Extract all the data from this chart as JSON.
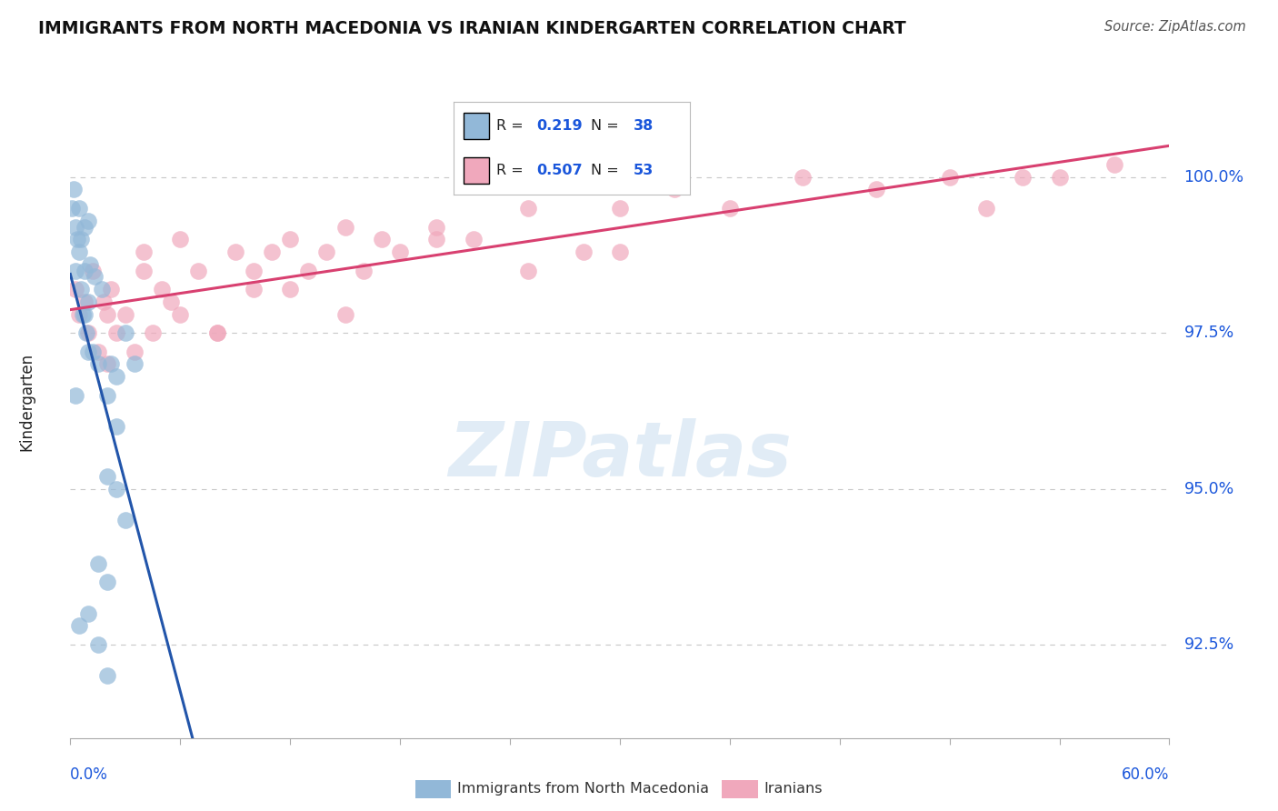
{
  "title": "IMMIGRANTS FROM NORTH MACEDONIA VS IRANIAN KINDERGARTEN CORRELATION CHART",
  "source": "Source: ZipAtlas.com",
  "ylabel": "Kindergarten",
  "xlim": [
    0.0,
    60.0
  ],
  "ylim": [
    91.0,
    101.8
  ],
  "yticks": [
    92.5,
    95.0,
    97.5,
    100.0
  ],
  "ytick_labels": [
    "92.5%",
    "95.0%",
    "97.5%",
    "100.0%"
  ],
  "blue_R": 0.219,
  "blue_N": 38,
  "pink_R": 0.507,
  "pink_N": 53,
  "blue_color": "#92b8d8",
  "pink_color": "#f0a8bc",
  "blue_line_color": "#2255aa",
  "pink_line_color": "#d84070",
  "legend_label_blue": "Immigrants from North Macedonia",
  "legend_label_pink": "Iranians",
  "blue_label_color": "#1a56db",
  "watermark_color": "#cde0f0",
  "grid_color": "#c8c8c8",
  "background_color": "#ffffff",
  "title_color": "#111111",
  "source_color": "#555555",
  "blue_scatter_x": [
    0.1,
    0.2,
    0.3,
    0.3,
    0.4,
    0.5,
    0.5,
    0.6,
    0.6,
    0.7,
    0.8,
    0.8,
    0.9,
    1.0,
    1.0,
    1.1,
    1.2,
    1.3,
    1.5,
    1.7,
    2.0,
    2.2,
    2.5,
    3.0,
    3.5,
    2.0,
    2.5,
    3.0,
    1.5,
    2.0,
    1.0,
    0.5,
    1.5,
    2.0,
    2.5,
    1.0,
    0.8,
    0.3
  ],
  "blue_scatter_y": [
    99.5,
    99.8,
    99.2,
    98.5,
    99.0,
    98.8,
    99.5,
    98.2,
    99.0,
    97.8,
    98.5,
    99.2,
    97.5,
    98.0,
    99.3,
    98.6,
    97.2,
    98.4,
    97.0,
    98.2,
    96.5,
    97.0,
    96.0,
    97.5,
    97.0,
    95.2,
    95.0,
    94.5,
    93.8,
    93.5,
    93.0,
    92.8,
    92.5,
    92.0,
    96.8,
    97.2,
    97.8,
    96.5
  ],
  "pink_scatter_x": [
    0.3,
    0.5,
    0.8,
    1.0,
    1.2,
    1.5,
    1.8,
    2.0,
    2.2,
    2.5,
    3.0,
    3.5,
    4.0,
    4.5,
    5.0,
    5.5,
    6.0,
    7.0,
    8.0,
    9.0,
    10.0,
    11.0,
    12.0,
    13.0,
    14.0,
    15.0,
    16.0,
    17.0,
    18.0,
    20.0,
    22.0,
    25.0,
    28.0,
    30.0,
    33.0,
    36.0,
    40.0,
    44.0,
    48.0,
    50.0,
    52.0,
    54.0,
    57.0,
    2.0,
    4.0,
    6.0,
    8.0,
    10.0,
    12.0,
    15.0,
    20.0,
    25.0,
    30.0
  ],
  "pink_scatter_y": [
    98.2,
    97.8,
    98.0,
    97.5,
    98.5,
    97.2,
    98.0,
    97.8,
    98.2,
    97.5,
    97.8,
    97.2,
    98.5,
    97.5,
    98.2,
    98.0,
    97.8,
    98.5,
    97.5,
    98.8,
    98.2,
    98.8,
    99.0,
    98.5,
    98.8,
    99.2,
    98.5,
    99.0,
    98.8,
    99.2,
    99.0,
    99.5,
    98.8,
    99.5,
    99.8,
    99.5,
    100.0,
    99.8,
    100.0,
    99.5,
    100.0,
    100.0,
    100.2,
    97.0,
    98.8,
    99.0,
    97.5,
    98.5,
    98.2,
    97.8,
    99.0,
    98.5,
    98.8
  ],
  "blue_trend_start_x": 0.0,
  "blue_trend_end_x": 25.0,
  "pink_trend_start_x": 0.0,
  "pink_trend_end_x": 60.0
}
